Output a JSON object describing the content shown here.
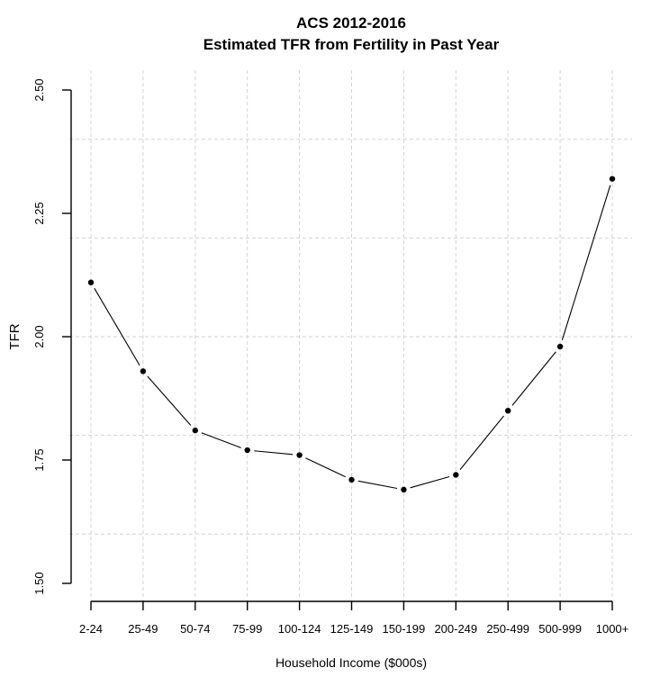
{
  "chart_data": {
    "type": "line",
    "title": "ACS 2012-2016",
    "subtitle": "Estimated TFR from Fertility in Past Year",
    "xlabel": "Household Income ($000s)",
    "ylabel": "TFR",
    "categories": [
      "2-24",
      "25-49",
      "50-74",
      "75-99",
      "100-124",
      "125-149",
      "150-199",
      "200-249",
      "250-499",
      "500-999",
      "1000+"
    ],
    "values": [
      2.11,
      1.93,
      1.81,
      1.77,
      1.76,
      1.71,
      1.69,
      1.72,
      1.85,
      1.98,
      2.32
    ],
    "series_name": "Estimated TFR",
    "ytick_labels": [
      "2.50",
      "2.25",
      "2.00",
      "1.75",
      "1.50"
    ],
    "ytick_values": [
      2.5,
      2.25,
      2.0,
      1.75,
      1.5
    ],
    "ylim": [
      1.46,
      2.54
    ],
    "grid_y_values": [
      2.4,
      2.2,
      2.0,
      1.8,
      1.6
    ],
    "grid_style": "dashed",
    "legend": "none",
    "marker": "filled-circle",
    "plot_type_note": "points connected by line segments with gaps (R type='b')",
    "colors": {
      "background": "#ffffff",
      "line": "#000000",
      "point": "#000000",
      "axis": "#000000",
      "text": "#000000",
      "grid": "#d3d3d3"
    }
  }
}
